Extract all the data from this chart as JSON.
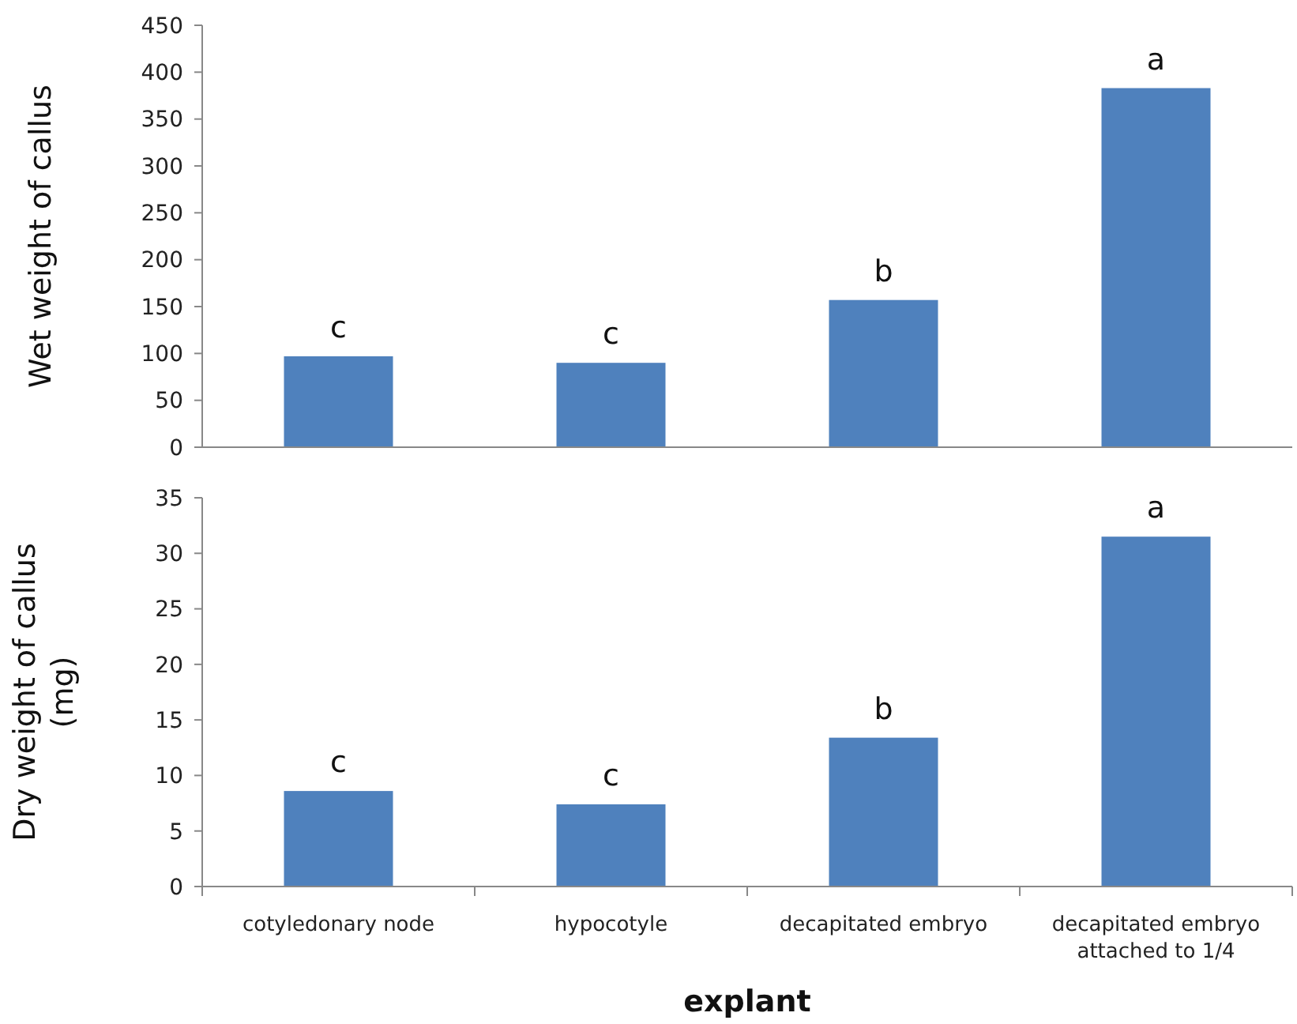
{
  "chart_data": [
    {
      "type": "bar",
      "ylabel": "Wet weight of callus",
      "categories": [
        "cotyledonary node",
        "hypocotyle",
        "decapitated embryo",
        "decapitated embryo attached to 1/4"
      ],
      "values": [
        97,
        90,
        157,
        383
      ],
      "color": "#4f81bd",
      "ylim": [
        0,
        450
      ],
      "yticks": [
        0,
        50,
        100,
        150,
        200,
        250,
        300,
        350,
        400,
        450
      ],
      "tick_labels": "y",
      "annotations": [
        {
          "text": "c",
          "x": "cotyledonary node",
          "y": 97
        },
        {
          "text": "c",
          "x": "hypocotyle",
          "y": 90
        },
        {
          "text": "b",
          "x": "decapitated embryo",
          "y": 157
        },
        {
          "text": "a",
          "x": "decapitated embryo attached to 1/4",
          "y": 383
        }
      ]
    },
    {
      "type": "bar",
      "ylabel": "Dry weight of callus (mg)",
      "xlabel": "explant",
      "categories": [
        "cotyledonary node",
        "hypocotyle",
        "decapitated embryo",
        "decapitated embryo attached to 1/4"
      ],
      "values": [
        8.6,
        7.4,
        13.4,
        31.5
      ],
      "color": "#4f81bd",
      "ylim": [
        0,
        35
      ],
      "yticks": [
        0,
        5,
        10,
        15,
        20,
        25,
        30,
        35
      ],
      "annotations": [
        {
          "text": "c",
          "x": "cotyledonary node",
          "y": 8.6
        },
        {
          "text": "c",
          "x": "hypocotyle",
          "y": 7.4
        },
        {
          "text": "b",
          "x": "decapitated embryo",
          "y": 13.4
        },
        {
          "text": "a",
          "x": "decapitated embryo attached to 1/4",
          "y": 31.5
        }
      ]
    }
  ]
}
